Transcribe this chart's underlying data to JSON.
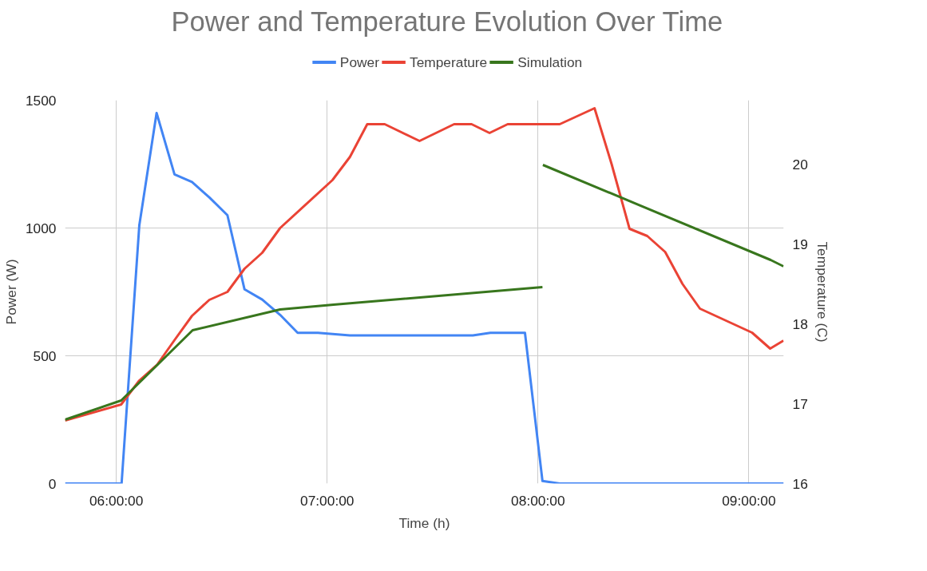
{
  "chart_data": {
    "type": "line",
    "title": "Power and Temperature Evolution Over Time",
    "xlabel": "Time (h)",
    "ylabel": "Power (W)",
    "y2label": "Temperature (C)",
    "xlim": [
      5.757,
      9.165
    ],
    "xticks": [
      {
        "value": 6,
        "label": "06:00:00"
      },
      {
        "value": 7,
        "label": "07:00:00"
      },
      {
        "value": 8,
        "label": "08:00:00"
      },
      {
        "value": 9,
        "label": "09:00:00"
      }
    ],
    "ylim": [
      0,
      1500
    ],
    "yticks": [
      0,
      500,
      1000,
      1500
    ],
    "y2lim": [
      16,
      20.8
    ],
    "y2ticks": [
      16,
      17,
      18,
      19,
      20
    ],
    "grid": true,
    "legend": "top",
    "marker": "none",
    "line_style": "solid",
    "series": [
      {
        "name": "Power",
        "color": "#4285f4",
        "x": [
          5.757,
          6.025,
          6.109,
          6.191,
          6.276,
          6.359,
          6.441,
          6.527,
          6.608,
          6.692,
          6.777,
          6.86,
          6.956,
          7.108,
          7.275,
          7.438,
          7.602,
          7.691,
          7.774,
          7.938,
          8.021,
          8.103,
          9.165
        ],
        "values": [
          0,
          0,
          1010,
          1450,
          1210,
          1180,
          1120,
          1050,
          760,
          720,
          660,
          590,
          590,
          580,
          580,
          580,
          580,
          580,
          590,
          590,
          10,
          0,
          0
        ]
      },
      {
        "name": "Temperature",
        "color": "#ea4335",
        "axis": "y2",
        "x": [
          5.757,
          6.023,
          6.109,
          6.194,
          6.277,
          6.359,
          6.441,
          6.527,
          6.608,
          6.692,
          6.777,
          7.025,
          7.108,
          7.19,
          7.273,
          7.438,
          7.602,
          7.685,
          7.77,
          7.856,
          8.103,
          8.268,
          8.349,
          8.434,
          8.518,
          8.603,
          8.685,
          8.768,
          9.015,
          9.101,
          9.164
        ],
        "values": [
          16.79,
          16.99,
          17.29,
          17.49,
          17.8,
          18.1,
          18.3,
          18.4,
          18.69,
          18.89,
          19.2,
          19.8,
          20.09,
          20.5,
          20.5,
          20.29,
          20.5,
          20.5,
          20.39,
          20.5,
          20.5,
          20.7,
          20.0,
          19.19,
          19.1,
          18.9,
          18.5,
          18.19,
          17.89,
          17.69,
          17.79
        ]
      },
      {
        "name": "Simulation",
        "color": "#38761d",
        "axis": "y2",
        "x": [
          5.757,
          6.023,
          6.362,
          6.777,
          7.03,
          8.021,
          8.022,
          8.023,
          9.103,
          9.164
        ],
        "values": [
          16.8,
          17.04,
          17.92,
          18.18,
          18.24,
          18.46,
          null,
          19.99,
          18.8,
          18.72
        ]
      }
    ]
  }
}
